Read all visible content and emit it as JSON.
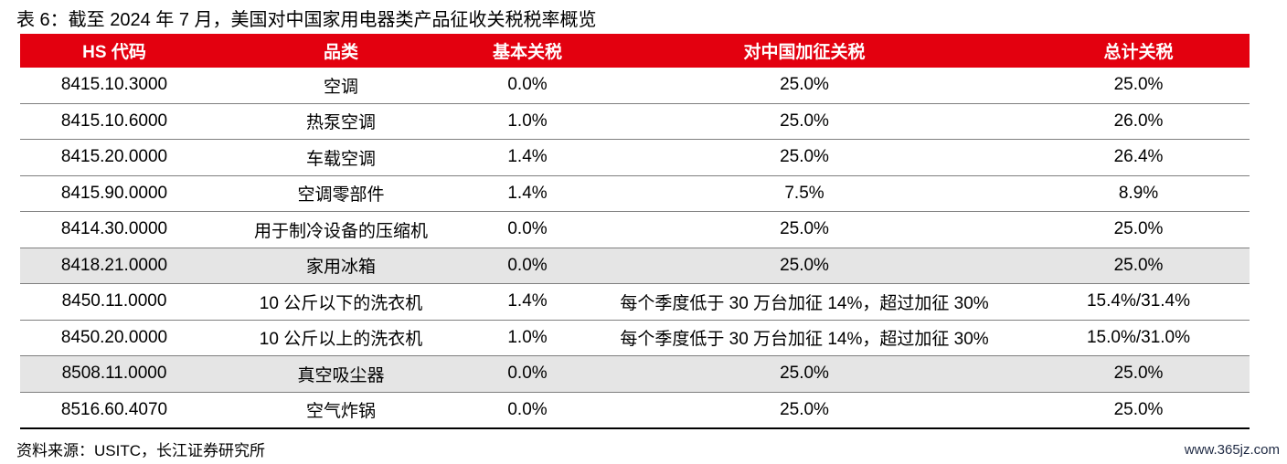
{
  "caption": "表 6：截至 2024 年 7 月，美国对中国家用电器类产品征收关税税率概览",
  "headers": [
    "HS 代码",
    "品类",
    "基本关税",
    "对中国加征关税",
    "总计关税"
  ],
  "rows": [
    {
      "code": "8415.10.3000",
      "category": "空调",
      "base": "0.0%",
      "additional": "25.0%",
      "total": "25.0%",
      "shaded": false
    },
    {
      "code": "8415.10.6000",
      "category": "热泵空调",
      "base": "1.0%",
      "additional": "25.0%",
      "total": "26.0%",
      "shaded": false
    },
    {
      "code": "8415.20.0000",
      "category": "车载空调",
      "base": "1.4%",
      "additional": "25.0%",
      "total": "26.4%",
      "shaded": false
    },
    {
      "code": "8415.90.0000",
      "category": "空调零部件",
      "base": "1.4%",
      "additional": "7.5%",
      "total": "8.9%",
      "shaded": false
    },
    {
      "code": "8414.30.0000",
      "category": "用于制冷设备的压缩机",
      "base": "0.0%",
      "additional": "25.0%",
      "total": "25.0%",
      "shaded": false
    },
    {
      "code": "8418.21.0000",
      "category": "家用冰箱",
      "base": "0.0%",
      "additional": "25.0%",
      "total": "25.0%",
      "shaded": true
    },
    {
      "code": "8450.11.0000",
      "category": "10 公斤以下的洗衣机",
      "base": "1.4%",
      "additional": "每个季度低于 30 万台加征 14%，超过加征 30%",
      "total": "15.4%/31.4%",
      "shaded": false
    },
    {
      "code": "8450.20.0000",
      "category": "10 公斤以上的洗衣机",
      "base": "1.0%",
      "additional": "每个季度低于 30 万台加征 14%，超过加征 30%",
      "total": "15.0%/31.0%",
      "shaded": false
    },
    {
      "code": "8508.11.0000",
      "category": "真空吸尘器",
      "base": "0.0%",
      "additional": "25.0%",
      "total": "25.0%",
      "shaded": true
    },
    {
      "code": "8516.60.4070",
      "category": "空气炸锅",
      "base": "0.0%",
      "additional": "25.0%",
      "total": "25.0%",
      "shaded": false
    }
  ],
  "source": "资料来源：USITC，长江证券研究所",
  "watermark": "www.365jz.com",
  "colors": {
    "header_bg": "#e3000f",
    "shaded_row": "#e5e5e5"
  }
}
